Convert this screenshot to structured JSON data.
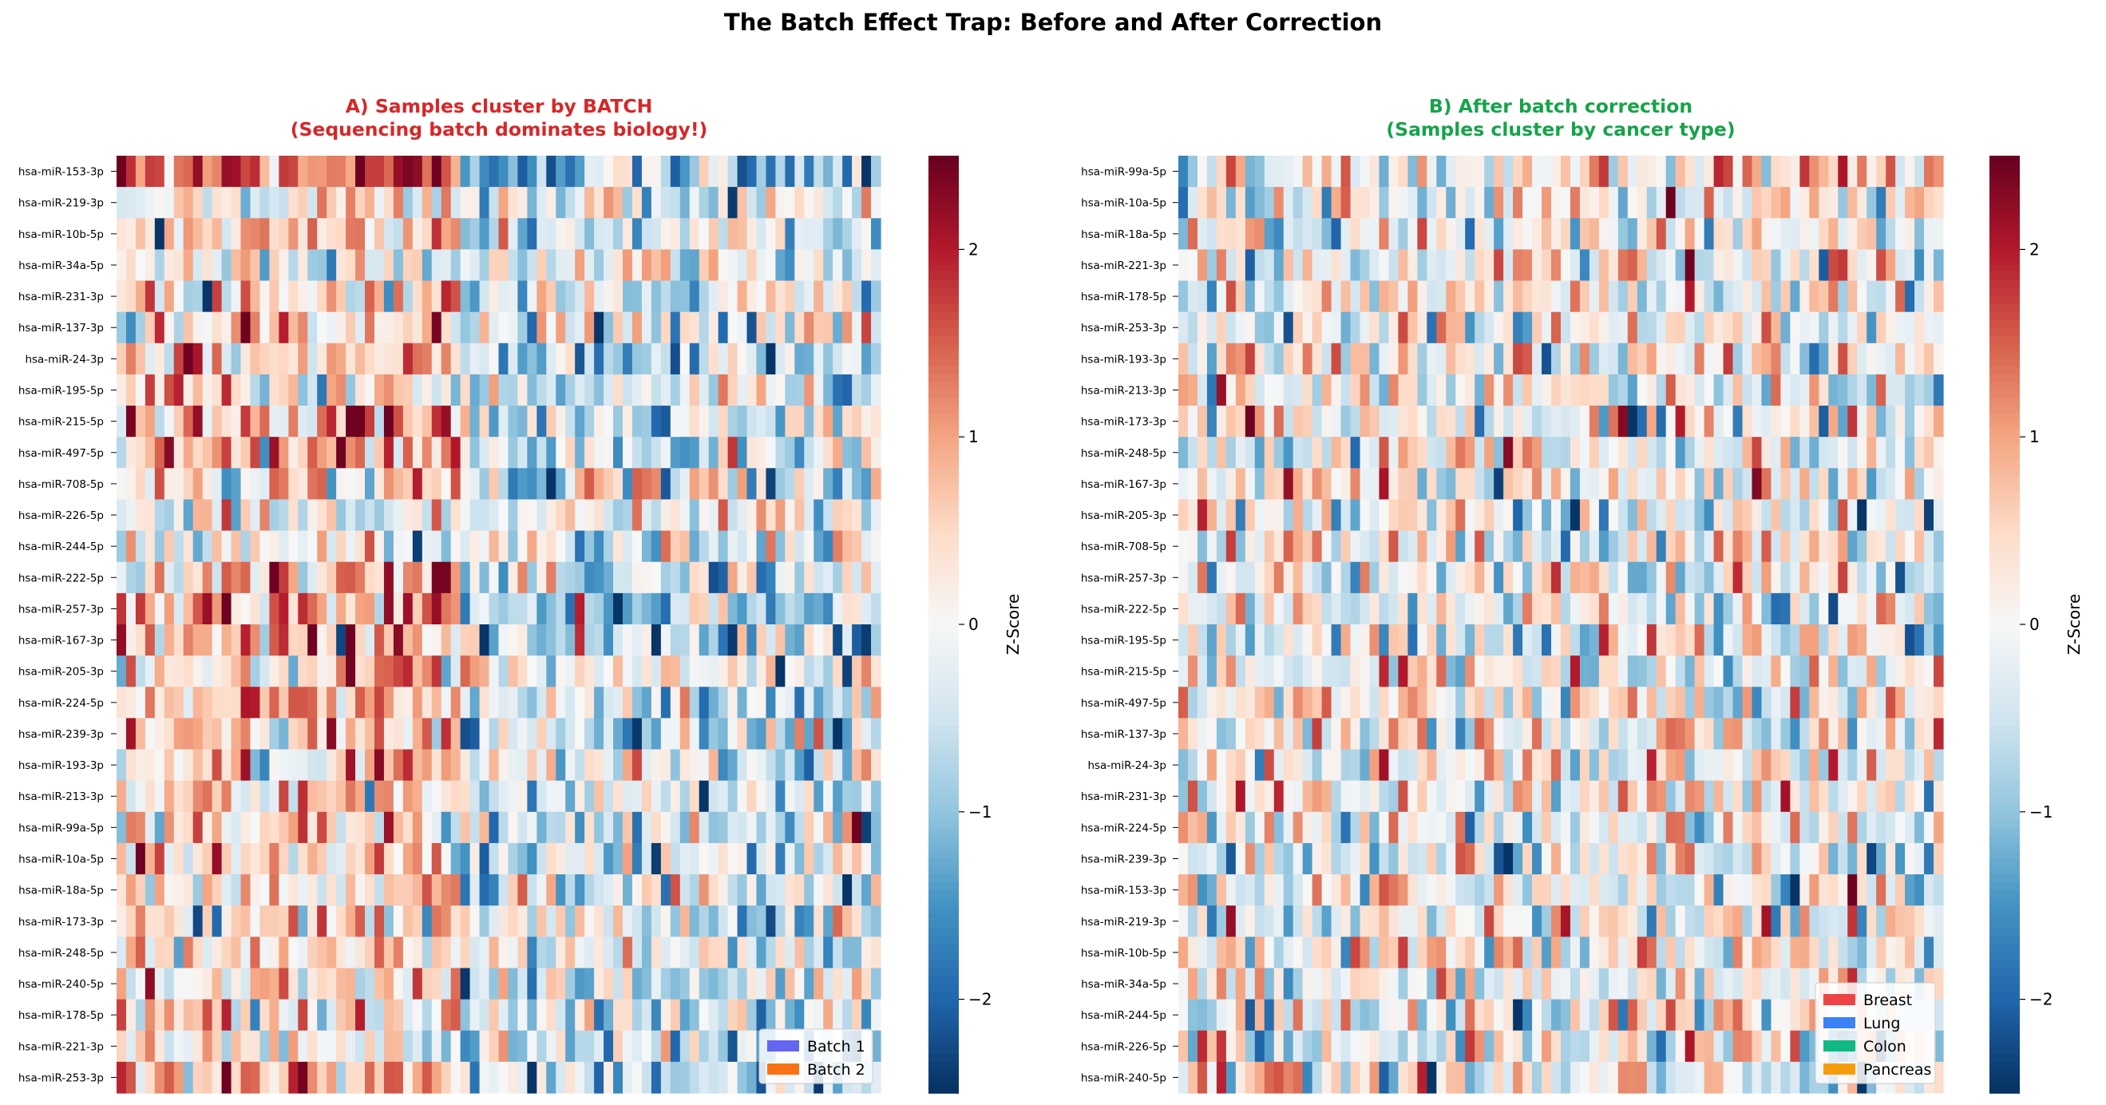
{
  "figure": {
    "suptitle": "The Batch Effect Trap: Before and After Correction"
  },
  "colors": {
    "title_left": "#d62728",
    "title_right": "#16a34a",
    "colormap": [
      "#053061",
      "#2166ac",
      "#4393c3",
      "#92c5de",
      "#d1e5f0",
      "#f7f7f7",
      "#fddbc7",
      "#f4a582",
      "#d6604d",
      "#b2182b",
      "#67001f"
    ]
  },
  "chart_data": [
    {
      "type": "heatmap",
      "panel": "A",
      "title_line1": "A) Samples cluster by BATCH",
      "title_line2": "(Sequencing batch dominates biology!)",
      "rows": [
        "hsa-miR-153-3p",
        "hsa-miR-219-3p",
        "hsa-miR-10b-5p",
        "hsa-miR-34a-5p",
        "hsa-miR-231-3p",
        "hsa-miR-137-3p",
        "hsa-miR-24-3p",
        "hsa-miR-195-5p",
        "hsa-miR-215-5p",
        "hsa-miR-497-5p",
        "hsa-miR-708-5p",
        "hsa-miR-226-5p",
        "hsa-miR-244-5p",
        "hsa-miR-222-5p",
        "hsa-miR-257-3p",
        "hsa-miR-167-3p",
        "hsa-miR-205-3p",
        "hsa-miR-224-5p",
        "hsa-miR-239-3p",
        "hsa-miR-193-3p",
        "hsa-miR-213-3p",
        "hsa-miR-99a-5p",
        "hsa-miR-10a-5p",
        "hsa-miR-18a-5p",
        "hsa-miR-173-3p",
        "hsa-miR-248-5p",
        "hsa-miR-240-5p",
        "hsa-miR-178-5p",
        "hsa-miR-221-3p",
        "hsa-miR-253-3p"
      ],
      "n_samples": 80,
      "value_range": [
        -2.5,
        2.5
      ],
      "colorbar_label": "Z-Score",
      "colorbar_ticks": [
        -2,
        -1,
        0,
        1,
        2
      ],
      "colorbar_tick_labels": [
        "−2",
        "−1",
        "0",
        "1",
        "2"
      ],
      "legend": [
        {
          "label": "Batch 1",
          "color": "#6366f1"
        },
        {
          "label": "Batch 2",
          "color": "#f97316"
        }
      ],
      "legend_position": "lower right"
    },
    {
      "type": "heatmap",
      "panel": "B",
      "title_line1": "B) After batch correction",
      "title_line2": "(Samples cluster by cancer type)",
      "rows": [
        "hsa-miR-99a-5p",
        "hsa-miR-10a-5p",
        "hsa-miR-18a-5p",
        "hsa-miR-221-3p",
        "hsa-miR-178-5p",
        "hsa-miR-253-3p",
        "hsa-miR-193-3p",
        "hsa-miR-213-3p",
        "hsa-miR-173-3p",
        "hsa-miR-248-5p",
        "hsa-miR-167-3p",
        "hsa-miR-205-3p",
        "hsa-miR-708-5p",
        "hsa-miR-257-3p",
        "hsa-miR-222-5p",
        "hsa-miR-195-5p",
        "hsa-miR-215-5p",
        "hsa-miR-497-5p",
        "hsa-miR-137-3p",
        "hsa-miR-24-3p",
        "hsa-miR-231-3p",
        "hsa-miR-224-5p",
        "hsa-miR-239-3p",
        "hsa-miR-153-3p",
        "hsa-miR-219-3p",
        "hsa-miR-10b-5p",
        "hsa-miR-34a-5p",
        "hsa-miR-244-5p",
        "hsa-miR-226-5p",
        "hsa-miR-240-5p"
      ],
      "n_samples": 80,
      "value_range": [
        -2.5,
        2.5
      ],
      "colorbar_label": "Z-Score",
      "colorbar_ticks": [
        -2,
        -1,
        0,
        1,
        2
      ],
      "colorbar_tick_labels": [
        "−2",
        "−1",
        "0",
        "1",
        "2"
      ],
      "legend": [
        {
          "label": "Breast",
          "color": "#ef4444"
        },
        {
          "label": "Lung",
          "color": "#3b82f6"
        },
        {
          "label": "Colon",
          "color": "#10b981"
        },
        {
          "label": "Pancreas",
          "color": "#f59e0b"
        }
      ],
      "legend_position": "lower right"
    }
  ]
}
